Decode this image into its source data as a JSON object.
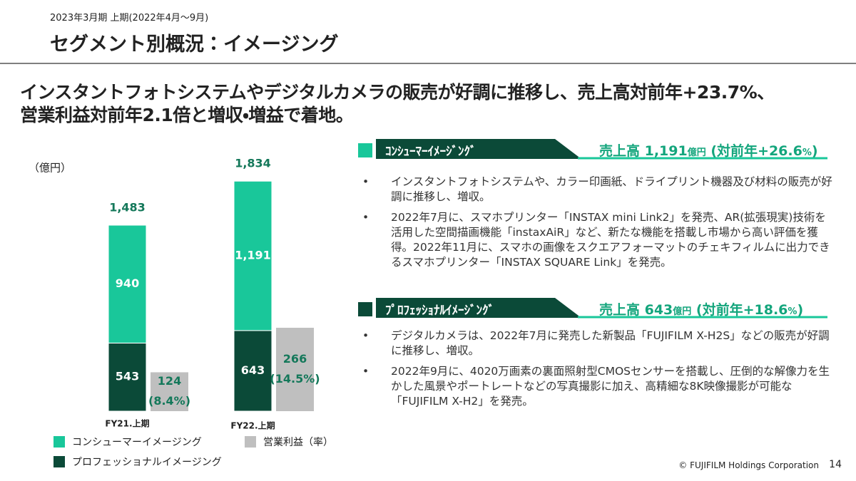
{
  "header": {
    "period": "2023年3月期 上期(2022年4月～9月)",
    "title": "セグメント別概況：イメージング"
  },
  "headline": [
    "インスタントフォトシステムやデジタルカメラの販売が好調に推移し、売上高対前年+23.7%、",
    "営業利益対前年2.1倍と増収・増益で着地。"
  ],
  "chart": {
    "type": "bar",
    "unit_label": "（億円）",
    "categories": [
      "FY21.上期",
      "FY22.上期"
    ],
    "ylim": [
      0,
      2000
    ],
    "y2lim": [
      0,
      800
    ],
    "series": [
      {
        "name": "プロフェッショナルイメージング",
        "color": "#0b4a38",
        "values": [
          543,
          643
        ],
        "value_labels": [
          "543",
          "643"
        ]
      },
      {
        "name": "コンシューマーイメージング",
        "color": "#19c79a",
        "values": [
          940,
          1191
        ],
        "value_labels": [
          "940",
          "1,191"
        ]
      },
      {
        "name": "営業利益（率）",
        "color": "#bfbfbf",
        "axis": "y2",
        "values": [
          124,
          266
        ],
        "value_labels": [
          "124",
          "266"
        ],
        "rate_labels": [
          "(8.4%)",
          "(14.5%)"
        ]
      }
    ],
    "total_labels": [
      "1,483",
      "1,834"
    ]
  },
  "segments": [
    {
      "name": "ｺﾝｼｭｰﾏｰｲﾒｰｼﾞﾝｸﾞ",
      "color": "#19c79a",
      "summary_parts": [
        "売上高 1,191",
        "億円",
        " (対前年+26.6",
        "%",
        ")"
      ],
      "bullets": [
        "インスタントフォトシステムや、カラー印画紙、ドライプリント機器及び材料の販売が好調に推移し、増収。",
        "2022年7月に、スマホプリンター「INSTAX mini Link2」を発売、AR(拡張現実)技術を活用した空間描画機能「instaxAiR」など、新たな機能を搭載し市場から高い評価を獲得。2022年11月に、スマホの画像をスクエアフォーマットのチェキフィルムに出力できるスマホプリンター「INSTAX SQUARE Link」を発売。"
      ]
    },
    {
      "name": "ﾌﾟﾛﾌｪｯｼｮﾅﾙｲﾒｰｼﾞﾝｸﾞ",
      "color": "#0b4a38",
      "summary_parts": [
        "売上高 643",
        "億円",
        " (対前年+18.6",
        "%",
        ")"
      ],
      "bullets": [
        "デジタルカメラは、2022年7月に発売した新製品「FUJIFILM X-H2S」などの販売が好調に推移し、増収。",
        "2022年9月に、4020万画素の裏面照射型CMOSセンサーを搭載し、圧倒的な解像力を生かした風景やポートレートなどの写真撮影に加え、高精細な8K映像撮影が可能な「FUJIFILM X-H2」を発売。"
      ]
    }
  ],
  "footer": {
    "copyright": "© FUJIFILM Holdings Corporation",
    "page": "14"
  }
}
